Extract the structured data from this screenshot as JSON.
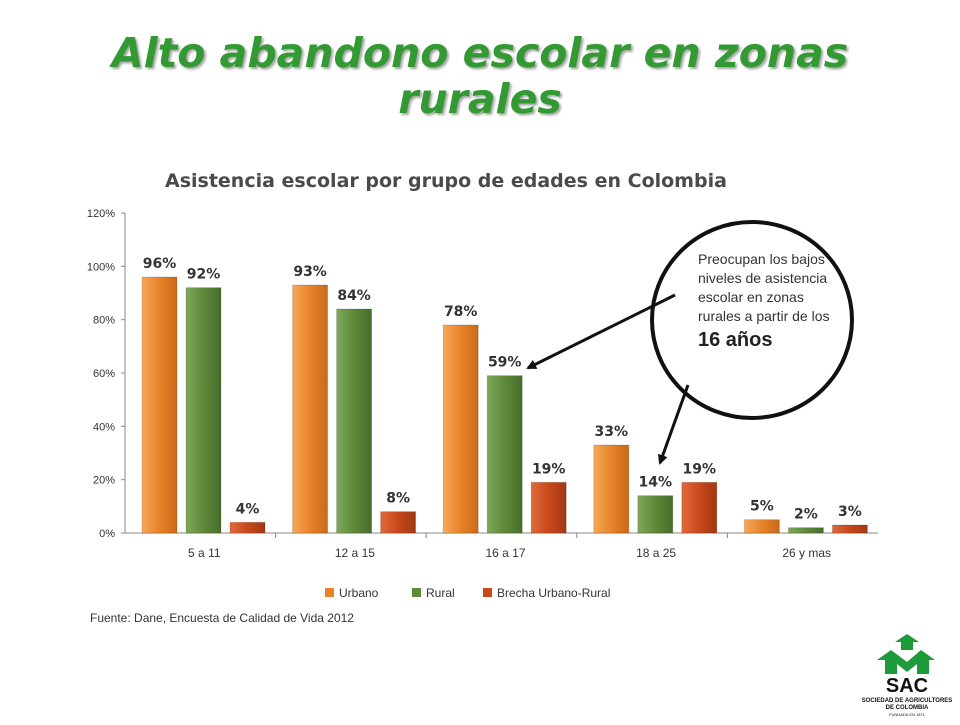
{
  "slide": {
    "title_line1": "Alto abandono escolar en zonas",
    "title_line2": "rurales"
  },
  "colors": {
    "title": "#339933",
    "urbano": "#e8832a",
    "rural": "#5e8a3a",
    "brecha": "#c8481c"
  },
  "chart_data": {
    "type": "bar",
    "title": "Asistencia escolar por grupo de edades en Colombia",
    "categories": [
      "5 a 11",
      "12 a 15",
      "16 a 17",
      "18 a 25",
      "26 y mas"
    ],
    "series": [
      {
        "name": "Urbano",
        "values": [
          96,
          93,
          78,
          33,
          5
        ],
        "labels": [
          "96%",
          "93%",
          "78%",
          "33%",
          "5%"
        ]
      },
      {
        "name": "Rural",
        "values": [
          92,
          84,
          59,
          14,
          2
        ],
        "labels": [
          "92%",
          "84%",
          "59%",
          "14%",
          "2%"
        ]
      },
      {
        "name": "Brecha Urbano-Rural",
        "values": [
          4,
          8,
          19,
          19,
          3
        ],
        "labels": [
          "4%",
          "8%",
          "19%",
          "19%",
          "3%"
        ]
      }
    ],
    "ylim": [
      0,
      120
    ],
    "yticks": [
      "0%",
      "20%",
      "40%",
      "60%",
      "80%",
      "100%",
      "120%"
    ],
    "legend_position": "bottom",
    "grid": false
  },
  "callout": {
    "text": "Preocupan los bajos niveles de asistencia escolar en zonas rurales a partir de los",
    "highlight": "16 años"
  },
  "source": "Fuente: Dane, Encuesta de Calidad de Vida 2012",
  "logo": {
    "name": "SAC",
    "line1": "SOCIEDAD DE AGRICULTORES",
    "line2": "DE COLOMBIA",
    "line3": "FUNDADA EN 1871"
  }
}
